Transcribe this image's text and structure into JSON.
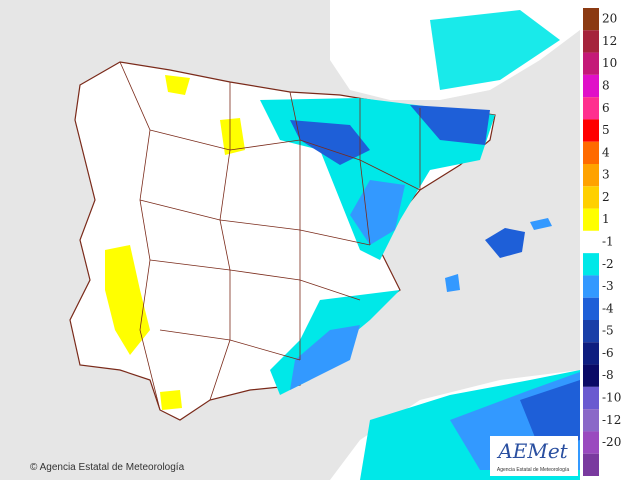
{
  "map": {
    "credit": "Agencia Estatal de Meteorología",
    "logo": {
      "name": "AEMet",
      "subtitle": "Agencia Estatal de Meteorología"
    },
    "legend": [
      {
        "label": "20",
        "color": "#8b3a12"
      },
      {
        "label": "12",
        "color": "#a5243c"
      },
      {
        "label": "10",
        "color": "#c41a78"
      },
      {
        "label": "8",
        "color": "#e010c8"
      },
      {
        "label": "6",
        "color": "#ff2f8f"
      },
      {
        "label": "5",
        "color": "#ff0000"
      },
      {
        "label": "4",
        "color": "#ff6a00"
      },
      {
        "label": "3",
        "color": "#ffa200"
      },
      {
        "label": "2",
        "color": "#ffd000"
      },
      {
        "label": "1",
        "color": "#ffff00"
      },
      {
        "label": "-1",
        "color": "#ffffff"
      },
      {
        "label": "-2",
        "color": "#00e8e8"
      },
      {
        "label": "-3",
        "color": "#3399ff"
      },
      {
        "label": "-4",
        "color": "#1e5fd8"
      },
      {
        "label": "-5",
        "color": "#1a3fa8"
      },
      {
        "label": "-6",
        "color": "#0e1e80"
      },
      {
        "label": "-8",
        "color": "#0a0a66"
      },
      {
        "label": "-10",
        "color": "#6a5ad0"
      },
      {
        "label": "-12",
        "color": "#8a68c8"
      },
      {
        "label": "-20",
        "color": "#9a4abf"
      },
      {
        "label": "",
        "color": "#7a3a9f"
      }
    ]
  }
}
